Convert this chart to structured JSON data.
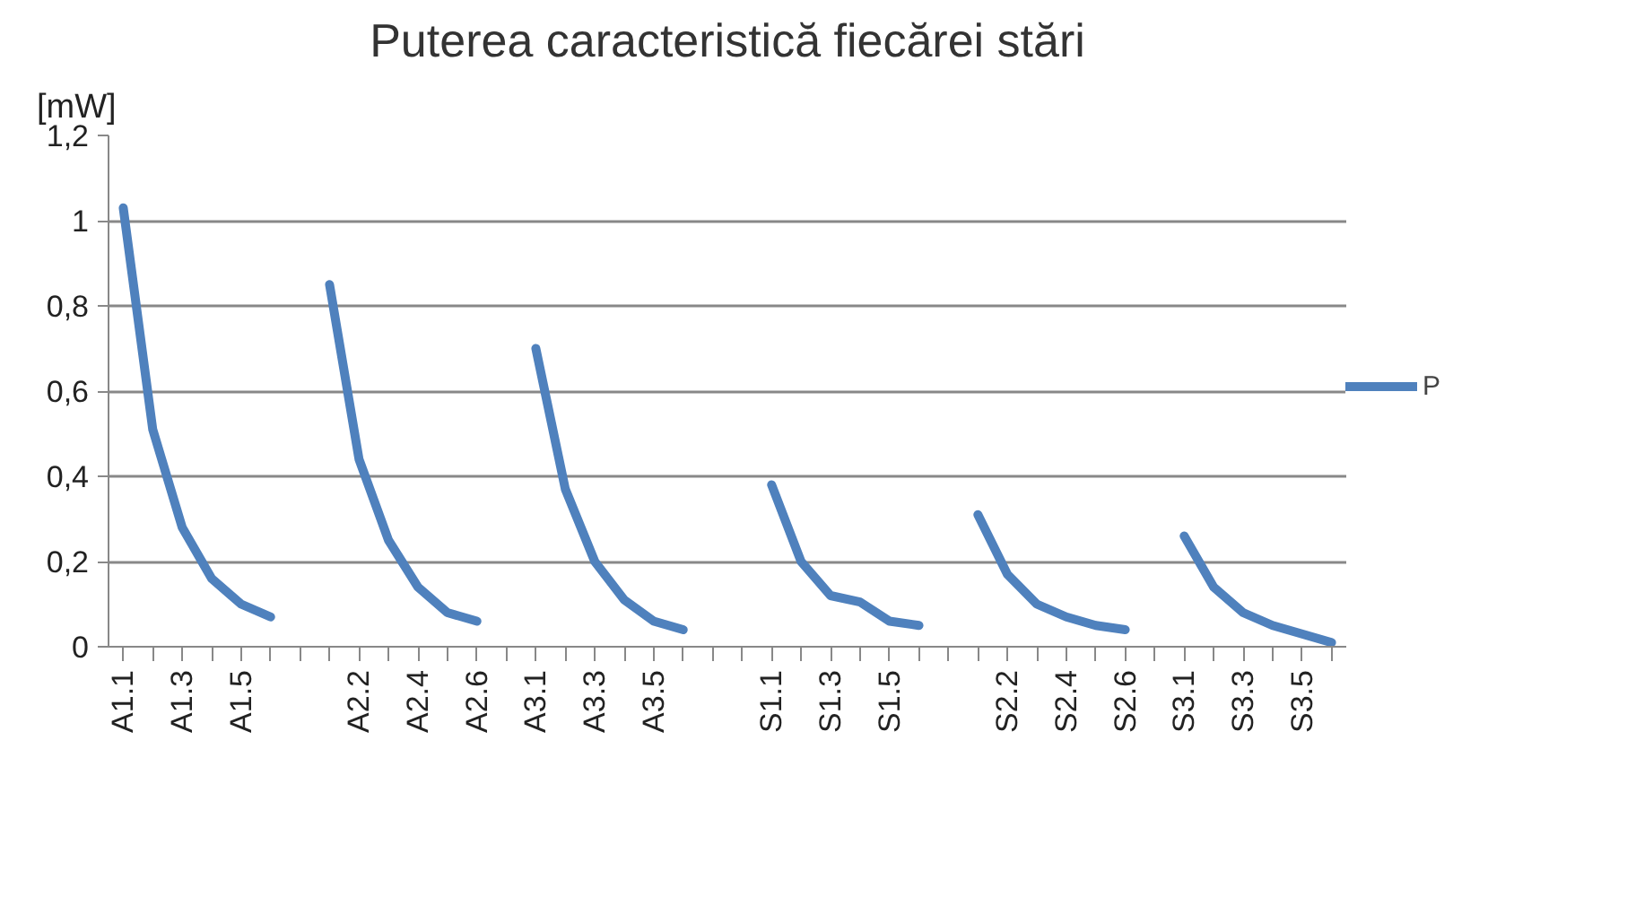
{
  "chart_data": {
    "type": "line",
    "title": "Puterea caracteristică fiecărei stări",
    "ylabel": "[mW]",
    "categories": [
      "A1.1",
      null,
      "A1.3",
      null,
      "A1.5",
      null,
      null,
      null,
      "A2.2",
      null,
      "A2.4",
      null,
      "A2.6",
      null,
      "A3.1",
      null,
      "A3.3",
      null,
      "A3.5",
      null,
      null,
      null,
      "S1.1",
      null,
      "S1.3",
      null,
      "S1.5",
      null,
      null,
      null,
      "S2.2",
      null,
      "S2.4",
      null,
      "S2.6",
      null,
      "S3.1",
      null,
      "S3.3",
      null,
      "S3.5",
      null
    ],
    "series": [
      {
        "name": "P",
        "color": "#4f81bd",
        "values": [
          1.03,
          0.51,
          0.28,
          0.16,
          0.1,
          0.07,
          null,
          0.85,
          0.44,
          0.25,
          0.14,
          0.08,
          0.06,
          null,
          0.7,
          0.37,
          0.2,
          0.11,
          0.06,
          0.04,
          null,
          null,
          0.38,
          0.2,
          0.12,
          0.105,
          0.06,
          0.05,
          null,
          0.31,
          0.17,
          0.1,
          0.07,
          0.05,
          0.04,
          null,
          0.26,
          0.14,
          0.08,
          0.05,
          0.03,
          0.01
        ]
      }
    ],
    "ylim": [
      0,
      1.2
    ],
    "yticks": [
      0,
      {
        "value": 0.2,
        "label": "0,2"
      },
      {
        "value": 0.4,
        "label": "0,4"
      },
      {
        "value": 0.6,
        "label": "0,6"
      },
      {
        "value": 0.8,
        "label": "0,8"
      },
      1,
      {
        "value": 1.2,
        "label": "1,2"
      }
    ],
    "grid": "y",
    "legend": "right",
    "marker": "none",
    "line_style": "solid"
  }
}
